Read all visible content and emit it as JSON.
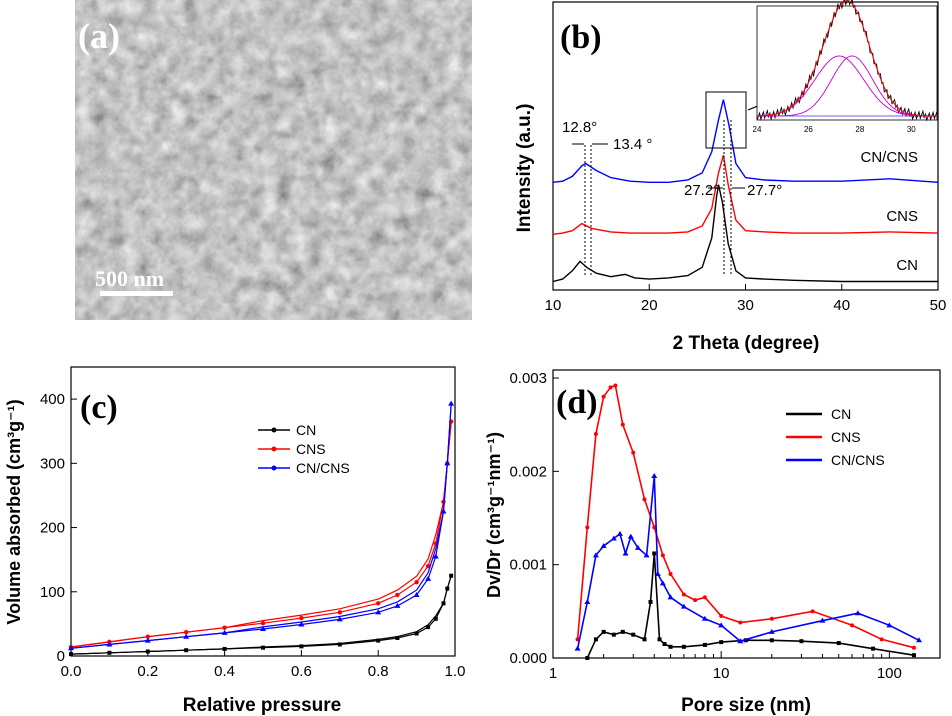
{
  "colors": {
    "CN": "#000000",
    "CNS": "#ff0000",
    "CN/CNS": "#0000ff",
    "inset_fit": "#cc00cc",
    "inset_base": "#3333ff"
  },
  "panels": {
    "a": {
      "label": "(a)",
      "scale_bar": "500 nm"
    },
    "b": {
      "label": "(b)",
      "peak_labels": [
        "12.8°",
        "13.4 °",
        "27.2°",
        "27.7°"
      ],
      "inset_ticks": [
        "24",
        "26",
        "28",
        "30"
      ]
    },
    "c": {
      "label": "(c)"
    },
    "d": {
      "label": "(d)"
    }
  },
  "chart_data": [
    {
      "id": "b",
      "type": "line",
      "title": "",
      "xlabel": "2 Theta (degree)",
      "ylabel": "Intensity (a.u.)",
      "xlim": [
        10,
        50
      ],
      "x_ticks": [
        "10",
        "20",
        "30",
        "40",
        "50"
      ],
      "series": [
        {
          "name": "CN",
          "offset": 0,
          "x": [
            10,
            11,
            12,
            12.8,
            13.5,
            14.5,
            16,
            17.5,
            18.5,
            20,
            22,
            24,
            25.5,
            26.5,
            27,
            27.2,
            27.6,
            28.2,
            29,
            30,
            32,
            35,
            40,
            45,
            50
          ],
          "y": [
            3,
            5,
            12,
            20,
            15,
            10,
            7,
            9,
            6,
            5,
            6,
            8,
            15,
            40,
            75,
            85,
            70,
            35,
            12,
            6,
            5,
            4,
            3,
            3,
            3
          ]
        },
        {
          "name": "CNS",
          "offset": 40,
          "x": [
            10,
            11,
            12,
            13,
            14,
            16,
            18,
            20,
            22,
            24,
            25.5,
            26.5,
            27.2,
            27.7,
            28.2,
            29,
            30,
            32,
            35,
            40,
            45,
            50
          ],
          "y": [
            3,
            4,
            6,
            12,
            8,
            5,
            4,
            4,
            4,
            5,
            10,
            25,
            55,
            70,
            45,
            15,
            6,
            5,
            4,
            4,
            5,
            4
          ]
        },
        {
          "name": "CN/CNS",
          "offset": 85,
          "x": [
            10,
            11,
            12,
            13,
            13.4,
            14.5,
            16,
            18,
            20,
            22,
            24,
            25.5,
            26.5,
            27.2,
            27.7,
            28.3,
            29,
            30,
            32,
            35,
            40,
            45,
            50
          ],
          "y": [
            2,
            3,
            7,
            16,
            18,
            12,
            6,
            3,
            2,
            2,
            4,
            10,
            28,
            55,
            72,
            50,
            18,
            6,
            4,
            3,
            3,
            5,
            2
          ]
        }
      ],
      "legend": [
        "CN/CNS",
        "CNS",
        "CN"
      ],
      "inset": {
        "xlim": [
          24,
          31
        ],
        "x_ticks": [
          24,
          26,
          28,
          30
        ]
      }
    },
    {
      "id": "c",
      "type": "line",
      "title": "",
      "xlabel": "Relative pressure",
      "ylabel": "Volume absorbed (cm³g⁻¹)",
      "xlim": [
        0.0,
        1.0
      ],
      "ylim": [
        0,
        450
      ],
      "x_ticks": [
        "0.0",
        "0.2",
        "0.4",
        "0.6",
        "0.8",
        "1.0"
      ],
      "y_ticks": [
        "0",
        "100",
        "200",
        "300",
        "400"
      ],
      "series": [
        {
          "name": "CN",
          "x": [
            0.0,
            0.1,
            0.2,
            0.3,
            0.4,
            0.5,
            0.6,
            0.7,
            0.8,
            0.85,
            0.9,
            0.93,
            0.95,
            0.97,
            0.98,
            0.99
          ],
          "y": [
            3,
            5,
            7,
            9,
            11,
            13,
            15,
            18,
            24,
            28,
            35,
            45,
            58,
            82,
            105,
            125
          ]
        },
        {
          "name": "CNS",
          "x": [
            0.0,
            0.1,
            0.2,
            0.3,
            0.4,
            0.5,
            0.6,
            0.7,
            0.8,
            0.85,
            0.9,
            0.93,
            0.95,
            0.97,
            0.98,
            0.99
          ],
          "y": [
            14,
            22,
            30,
            37,
            44,
            51,
            59,
            68,
            82,
            95,
            115,
            140,
            175,
            240,
            300,
            365
          ]
        },
        {
          "name": "CN/CNS",
          "x": [
            0.0,
            0.1,
            0.2,
            0.3,
            0.4,
            0.5,
            0.6,
            0.7,
            0.8,
            0.85,
            0.9,
            0.93,
            0.95,
            0.97,
            0.98,
            0.99
          ],
          "y": [
            12,
            18,
            24,
            30,
            36,
            42,
            49,
            57,
            68,
            78,
            95,
            120,
            155,
            225,
            300,
            393
          ]
        }
      ],
      "legend": [
        "CN",
        "CNS",
        "CN/CNS"
      ]
    },
    {
      "id": "d",
      "type": "line",
      "title": "",
      "xlabel": "Pore size (nm)",
      "ylabel": "Dv/Dr (cm³g⁻¹nm⁻¹)",
      "xscale": "log",
      "xlim": [
        1,
        200
      ],
      "ylim": [
        0,
        0.003
      ],
      "x_ticks": [
        "1",
        "10",
        "100"
      ],
      "y_ticks": [
        "0.000",
        "0.001",
        "0.002",
        "0.003"
      ],
      "series": [
        {
          "name": "CN",
          "x": [
            1.6,
            1.8,
            2.0,
            2.3,
            2.6,
            3.0,
            3.5,
            3.8,
            4.0,
            4.3,
            4.6,
            5,
            6,
            8,
            10,
            14,
            20,
            30,
            50,
            80,
            140
          ],
          "y": [
            0.0,
            0.0002,
            0.00028,
            0.00025,
            0.00028,
            0.00025,
            0.0002,
            0.0006,
            0.00112,
            0.0002,
            0.00015,
            0.00012,
            0.00012,
            0.00014,
            0.00017,
            0.00019,
            0.00019,
            0.00018,
            0.00016,
            0.0001,
            3e-05
          ]
        },
        {
          "name": "CNS",
          "x": [
            1.4,
            1.6,
            1.8,
            2.0,
            2.2,
            2.35,
            2.6,
            3.0,
            3.5,
            4.0,
            4.5,
            5,
            6,
            7,
            8,
            10,
            13,
            20,
            35,
            60,
            90,
            140
          ],
          "y": [
            0.0002,
            0.0014,
            0.0024,
            0.0028,
            0.0029,
            0.00292,
            0.0025,
            0.0022,
            0.0017,
            0.0014,
            0.0011,
            0.0009,
            0.00068,
            0.00062,
            0.00065,
            0.00045,
            0.00038,
            0.00042,
            0.0005,
            0.00035,
            0.0002,
            0.00011
          ]
        },
        {
          "name": "CN/CNS",
          "x": [
            1.4,
            1.6,
            1.8,
            2.0,
            2.3,
            2.5,
            2.7,
            2.9,
            3.2,
            3.6,
            4.0,
            4.2,
            4.5,
            5,
            6,
            8,
            10,
            13,
            20,
            40,
            65,
            100,
            150
          ],
          "y": [
            0.0001,
            0.0006,
            0.0011,
            0.0012,
            0.00128,
            0.00133,
            0.00112,
            0.0013,
            0.00118,
            0.0011,
            0.00195,
            0.0009,
            0.0008,
            0.00065,
            0.00055,
            0.00042,
            0.00035,
            0.00018,
            0.00028,
            0.0004,
            0.00048,
            0.00035,
            0.00019
          ]
        }
      ],
      "legend": [
        "CN",
        "CNS",
        "CN/CNS"
      ]
    }
  ]
}
